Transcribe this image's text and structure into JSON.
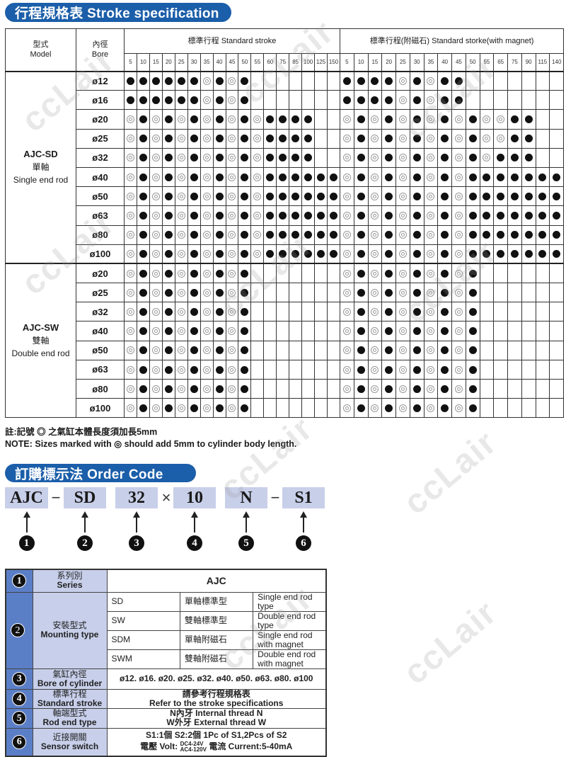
{
  "title": "行程規格表 Stroke specification",
  "colors": {
    "brand_blue": "#1b5ea9",
    "code_box": "#c8cfe9",
    "number_col": "#5b7fc7",
    "label_col": "#c7cfea"
  },
  "legend": {
    "filled": "●",
    "double": "◎"
  },
  "spec_table": {
    "model_header_zh": "型式",
    "model_header_en": "Model",
    "bore_header_zh": "內徑",
    "bore_header_en": "Bore",
    "standard_header": "標準行程  Standard stroke",
    "magnet_header": "標準行程(附磁石)  Standard storke(with magnet)",
    "standard_strokes": [
      "5",
      "10",
      "15",
      "20",
      "25",
      "30",
      "35",
      "40",
      "45",
      "50",
      "55",
      "60",
      "75",
      "85",
      "100",
      "125",
      "150"
    ],
    "magnet_strokes": [
      "5",
      "10",
      "15",
      "20",
      "25",
      "30",
      "35",
      "40",
      "45",
      "50",
      "55",
      "65",
      "75",
      "90",
      "115",
      "140"
    ],
    "groups": [
      {
        "code": "AJC-SD",
        "zh": "單軸",
        "en": "Single end rod",
        "rows": [
          {
            "bore": "ø12",
            "std": "FFFFFFDFDF.......",
            "mag": "FFFFDFDFF......."
          },
          {
            "bore": "ø16",
            "std": "FFFFFFDFDF.......",
            "mag": "FFFFDFDFF......."
          },
          {
            "bore": "ø20",
            "std": "DFDFDFDFDFDFFFF..",
            "mag": "DFDFDFDFDFDDFF.."
          },
          {
            "bore": "ø25",
            "std": "DFDFDFDFDFDFFFF..",
            "mag": "DFDFDFDFDFDDFF.."
          },
          {
            "bore": "ø32",
            "std": "DFDFDFDFDFDFFFF..",
            "mag": "DFDFDFDFDFDFFF.."
          },
          {
            "bore": "ø40",
            "std": "DFDFDFDFDFDFFFFFF",
            "mag": "DFDFDFDFDFFFFFFF"
          },
          {
            "bore": "ø50",
            "std": "DFDFDFDFDFDFFFFFF",
            "mag": "DFDFDFDFDFFFFFFF"
          },
          {
            "bore": "ø63",
            "std": "DFDFDFDFDFDFFFFFF",
            "mag": "DFDFDFDFDFFFFFFF"
          },
          {
            "bore": "ø80",
            "std": "DFDFDFDFDFDFFFFFF",
            "mag": "DFDFDFDFDFFFFFFF"
          },
          {
            "bore": "ø100",
            "std": "DFDFDFDFDFDFFFFFF",
            "mag": "DFDFDFDFDFFFFFFF"
          }
        ]
      },
      {
        "code": "AJC-SW",
        "zh": "雙軸",
        "en": "Double end rod",
        "rows": [
          {
            "bore": "ø20",
            "std": "DFDFDFDFDF.......",
            "mag": "DFDFDFDFDF......"
          },
          {
            "bore": "ø25",
            "std": "DFDFDFDFDF.......",
            "mag": "DFDFDFDFDF......"
          },
          {
            "bore": "ø32",
            "std": "DFDFDFDFDF.......",
            "mag": "DFDFDFDFDF......"
          },
          {
            "bore": "ø40",
            "std": "DFDFDFDFDF.......",
            "mag": "DFDFDFDFDF......"
          },
          {
            "bore": "ø50",
            "std": "DFDFDFDFDF.......",
            "mag": "DFDFDFDFDF......"
          },
          {
            "bore": "ø63",
            "std": "DFDFDFDFDF.......",
            "mag": "DFDFDFDFDF......"
          },
          {
            "bore": "ø80",
            "std": "DFDFDFDFDF.......",
            "mag": "DFDFDFDFDF......"
          },
          {
            "bore": "ø100",
            "std": "DFDFDFDFDF.......",
            "mag": "DFDFDFDFDF......"
          }
        ]
      }
    ]
  },
  "notes": {
    "zh": "註:記號 ◎ 之氣缸本體長度須加長5mm",
    "en": "NOTE: Sizes marked with ◎ should add 5mm to cylinder body length."
  },
  "order_code": {
    "title": "訂購標示法  Order Code",
    "parts": [
      "AJC",
      "SD",
      "32",
      "10",
      "N",
      "S1"
    ],
    "separators": [
      "−",
      "",
      "×",
      "",
      "−"
    ],
    "numbers": [
      "1",
      "2",
      "3",
      "4",
      "5",
      "6"
    ]
  },
  "order_table": {
    "series": {
      "num": "1",
      "zh": "系列別",
      "en": "Series",
      "value": "AJC"
    },
    "mounting": {
      "num": "2",
      "zh": "安裝型式",
      "en": "Mounting type",
      "options": [
        {
          "code": "SD",
          "zh": "單軸標準型",
          "en": "Single end rod type"
        },
        {
          "code": "SW",
          "zh": "雙軸標準型",
          "en": "Double end rod type"
        },
        {
          "code": "SDM",
          "zh": "單軸附磁石",
          "en": "Single end rod with magnet"
        },
        {
          "code": "SWM",
          "zh": "雙軸附磁石",
          "en": "Double end rod with magnet"
        }
      ]
    },
    "bore": {
      "num": "3",
      "zh": "氣缸內徑",
      "en": "Bore of cylinder",
      "value": "ø12. ø16. ø20. ø25. ø32. ø40. ø50. ø63. ø80. ø100"
    },
    "stroke": {
      "num": "4",
      "zh": "標準行程",
      "en": "Standard stroke",
      "value_zh": "請參考行程規格表",
      "value_en": "Refer to the stroke specifications"
    },
    "rod_end": {
      "num": "5",
      "zh": "軸端型式",
      "en": "Rod end type",
      "line1": "N內牙  Internal thread N",
      "line2": "W外牙 External thread W"
    },
    "sensor": {
      "num": "6",
      "zh": "近接開關",
      "en": "Sensor switch",
      "line1": "S1:1個  S2:2個  1Pc of S1,2Pcs of S2",
      "volt_label": "電壓 Volt:",
      "volt_dc": "DC4-24V",
      "volt_ac": "AC4-120V",
      "current": "電流 Current:5-40mA"
    }
  },
  "watermark": "ccLair"
}
